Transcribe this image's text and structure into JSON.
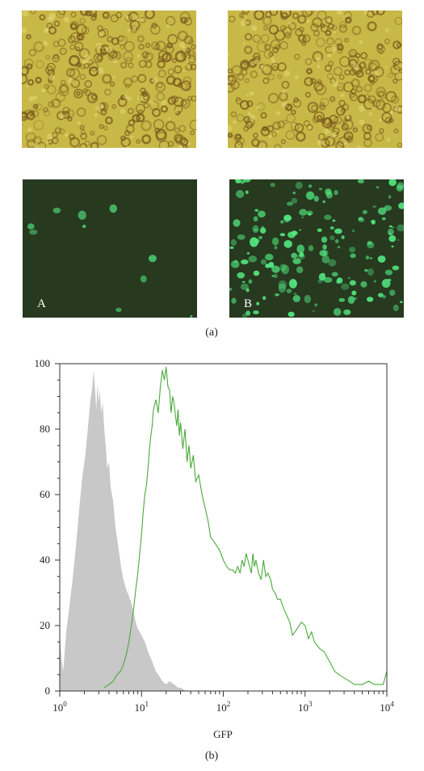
{
  "figure_a": {
    "caption": "(a)",
    "panels": [
      {
        "label": "",
        "kind": "brightfield"
      },
      {
        "label": "",
        "kind": "brightfield"
      },
      {
        "label": "A",
        "kind": "fluorescence",
        "density": "sparse"
      },
      {
        "label": "B",
        "kind": "fluorescence",
        "density": "dense"
      }
    ],
    "colors": {
      "brightfield_bg": "#c8b847",
      "cell_dark": "#7a5a1c",
      "fluor_bg": "#27391f",
      "fluor_cell": "#52e880"
    }
  },
  "figure_b": {
    "caption": "(b)",
    "chart_data": {
      "type": "area",
      "xlabel": "GFP",
      "ylabel": "",
      "xscale": "log",
      "xlim": [
        1,
        10000
      ],
      "ylim": [
        0,
        100
      ],
      "x_ticks": [
        {
          "value": 1,
          "base": "10",
          "exp": "0"
        },
        {
          "value": 10,
          "base": "10",
          "exp": "1"
        },
        {
          "value": 100,
          "base": "10",
          "exp": "2"
        },
        {
          "value": 1000,
          "base": "10",
          "exp": "3"
        },
        {
          "value": 10000,
          "base": "10",
          "exp": "4"
        }
      ],
      "y_ticks": [
        "0",
        "20",
        "40",
        "60",
        "80",
        "100"
      ],
      "series": [
        {
          "style": "filled",
          "color": "#c8c8c8",
          "x": [
            1,
            1.05,
            1.1,
            1.2,
            1.3,
            1.45,
            1.6,
            1.75,
            1.9,
            2.05,
            2.2,
            2.35,
            2.5,
            2.6,
            2.7,
            2.8,
            2.9,
            3.0,
            3.1,
            3.2,
            3.35,
            3.5,
            3.65,
            3.8,
            4.0,
            4.2,
            4.5,
            4.8,
            5.2,
            5.6,
            6.0,
            6.5,
            7.0,
            7.5,
            8.0,
            8.5,
            9.0,
            10,
            11,
            12,
            13,
            14,
            15,
            16,
            17,
            18,
            20,
            22,
            25,
            28,
            30,
            35,
            40
          ],
          "y": [
            18,
            10,
            6,
            18,
            25,
            35,
            46,
            57,
            66,
            72,
            80,
            88,
            93,
            98,
            92,
            86,
            94,
            88,
            92,
            85,
            88,
            80,
            75,
            68,
            70,
            62,
            58,
            50,
            44,
            38,
            34,
            31,
            29,
            27,
            24,
            21,
            19,
            17,
            15,
            12,
            10,
            8,
            6,
            5,
            4,
            3,
            2,
            3,
            2,
            1,
            1,
            0,
            0
          ]
        },
        {
          "style": "line",
          "color": "#4aaa3a",
          "x": [
            3.5,
            4,
            4.5,
            5,
            5.5,
            6,
            6.5,
            7,
            7.5,
            8,
            8.5,
            9,
            9.5,
            10,
            10.5,
            11,
            11.5,
            12,
            12.5,
            13,
            13.5,
            14,
            15,
            16,
            17,
            18,
            19,
            20,
            21,
            22,
            23,
            24,
            25,
            26,
            27,
            28,
            29,
            30,
            32,
            34,
            36,
            38,
            40,
            43,
            46,
            50,
            55,
            60,
            65,
            70,
            75,
            80,
            90,
            100,
            110,
            120,
            130,
            140,
            150,
            160,
            170,
            180,
            190,
            200,
            210,
            220,
            230,
            240,
            250,
            270,
            290,
            310,
            330,
            350,
            380,
            400,
            430,
            460,
            500,
            550,
            600,
            650,
            700,
            800,
            900,
            1000,
            1100,
            1200,
            1300,
            1500,
            1700,
            2000,
            2300,
            2600,
            3000,
            3500,
            4000,
            5000,
            6000,
            7000,
            8000,
            9000,
            10000
          ],
          "y": [
            1,
            2,
            3,
            5,
            6,
            8,
            11,
            15,
            20,
            25,
            31,
            36,
            42,
            48,
            55,
            60,
            63,
            68,
            74,
            78,
            81,
            86,
            89,
            85,
            93,
            98,
            95,
            99,
            93,
            92,
            85,
            90,
            88,
            84,
            81,
            86,
            78,
            82,
            74,
            80,
            70,
            75,
            68,
            72,
            64,
            66,
            60,
            56,
            52,
            47,
            46,
            45,
            43,
            40,
            38,
            37,
            37,
            36,
            38,
            36,
            40,
            38,
            42,
            40,
            38,
            36,
            42,
            38,
            40,
            36,
            34,
            40,
            35,
            36,
            34,
            31,
            30,
            28,
            28,
            25,
            23,
            21,
            17,
            19,
            21,
            20,
            16,
            18,
            15,
            13,
            12,
            9,
            6,
            5,
            4,
            3,
            2,
            2,
            3,
            2,
            2,
            2,
            6
          ]
        }
      ]
    }
  }
}
